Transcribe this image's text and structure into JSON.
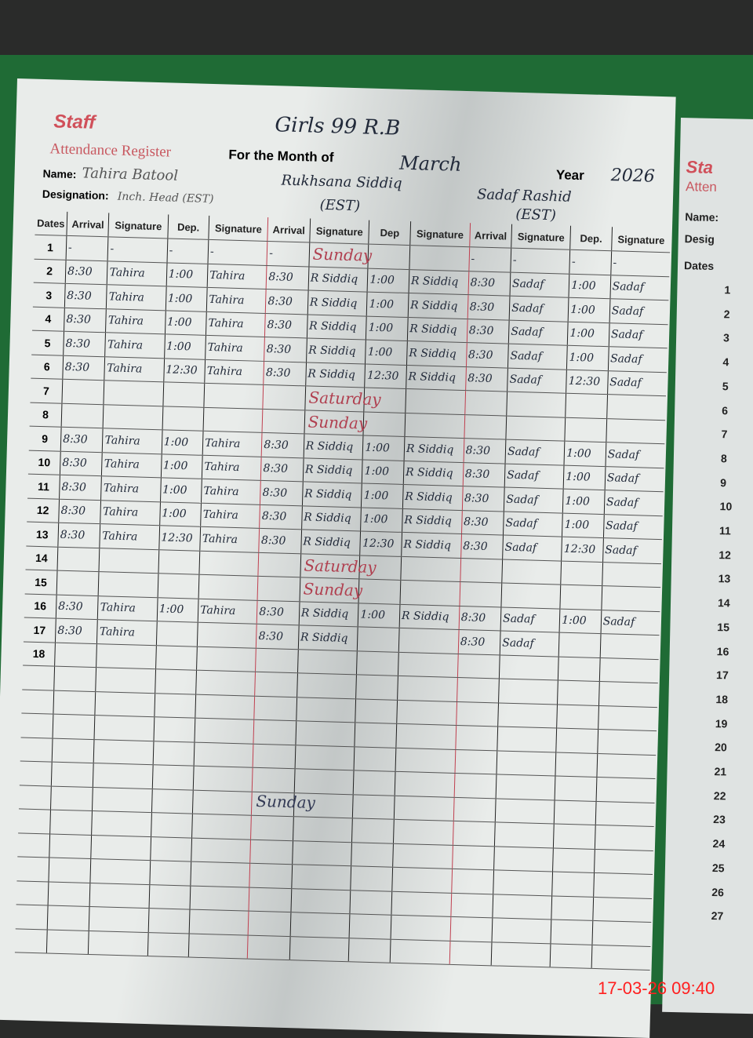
{
  "header": {
    "title": "Staff",
    "subtitle": "Attendance Register",
    "month_label": "For the Month of",
    "school": "Girls 99 R.B",
    "month": "March",
    "year_label": "Year",
    "year": "2026",
    "name_label": "Name:",
    "designation_label": "Designation:"
  },
  "staff": [
    {
      "name": "Tahira Batool",
      "designation": "Inch. Head (EST)"
    },
    {
      "name": "Rukhsana Siddiq",
      "designation": "(EST)"
    },
    {
      "name": "Sadaf Rashid",
      "designation": "(EST)"
    }
  ],
  "columns": [
    "Dates",
    "Arrival",
    "Signature",
    "Dep.",
    "Signature",
    "Arrival",
    "Signature",
    "Dep",
    "Signature",
    "Arrival",
    "Signature",
    "Dep.",
    "Signature"
  ],
  "rows": [
    [
      "1",
      "-",
      "-",
      "-",
      "-",
      "-",
      "",
      "",
      "",
      "-",
      "-",
      "-",
      "-"
    ],
    [
      "2",
      "8:30",
      "Tahira",
      "1:00",
      "Tahira",
      "8:30",
      "R Siddiq",
      "1:00",
      "R Siddiq",
      "8:30",
      "Sadaf",
      "1:00",
      "Sadaf"
    ],
    [
      "3",
      "8:30",
      "Tahira",
      "1:00",
      "Tahira",
      "8:30",
      "R Siddiq",
      "1:00",
      "R Siddiq",
      "8:30",
      "Sadaf",
      "1:00",
      "Sadaf"
    ],
    [
      "4",
      "8:30",
      "Tahira",
      "1:00",
      "Tahira",
      "8:30",
      "R Siddiq",
      "1:00",
      "R Siddiq",
      "8:30",
      "Sadaf",
      "1:00",
      "Sadaf"
    ],
    [
      "5",
      "8:30",
      "Tahira",
      "1:00",
      "Tahira",
      "8:30",
      "R Siddiq",
      "1:00",
      "R Siddiq",
      "8:30",
      "Sadaf",
      "1:00",
      "Sadaf"
    ],
    [
      "6",
      "8:30",
      "Tahira",
      "12:30",
      "Tahira",
      "8:30",
      "R Siddiq",
      "12:30",
      "R Siddiq",
      "8:30",
      "Sadaf",
      "12:30",
      "Sadaf"
    ],
    [
      "7",
      "",
      "",
      "",
      "",
      "",
      "",
      "",
      "",
      "",
      "",
      "",
      ""
    ],
    [
      "8",
      "",
      "",
      "",
      "",
      "",
      "",
      "",
      "",
      "",
      "",
      "",
      ""
    ],
    [
      "9",
      "8:30",
      "Tahira",
      "1:00",
      "Tahira",
      "8:30",
      "R Siddiq",
      "1:00",
      "R Siddiq",
      "8:30",
      "Sadaf",
      "1:00",
      "Sadaf"
    ],
    [
      "10",
      "8:30",
      "Tahira",
      "1:00",
      "Tahira",
      "8:30",
      "R Siddiq",
      "1:00",
      "R Siddiq",
      "8:30",
      "Sadaf",
      "1:00",
      "Sadaf"
    ],
    [
      "11",
      "8:30",
      "Tahira",
      "1:00",
      "Tahira",
      "8:30",
      "R Siddiq",
      "1:00",
      "R Siddiq",
      "8:30",
      "Sadaf",
      "1:00",
      "Sadaf"
    ],
    [
      "12",
      "8:30",
      "Tahira",
      "1:00",
      "Tahira",
      "8:30",
      "R Siddiq",
      "1:00",
      "R Siddiq",
      "8:30",
      "Sadaf",
      "1:00",
      "Sadaf"
    ],
    [
      "13",
      "8:30",
      "Tahira",
      "12:30",
      "Tahira",
      "8:30",
      "R Siddiq",
      "12:30",
      "R Siddiq",
      "8:30",
      "Sadaf",
      "12:30",
      "Sadaf"
    ],
    [
      "14",
      "",
      "",
      "",
      "",
      "",
      "",
      "",
      "",
      "",
      "",
      "",
      ""
    ],
    [
      "15",
      "",
      "",
      "",
      "",
      "",
      "",
      "",
      "",
      "",
      "",
      "",
      ""
    ],
    [
      "16",
      "8:30",
      "Tahira",
      "1:00",
      "Tahira",
      "8:30",
      "R Siddiq",
      "1:00",
      "R Siddiq",
      "8:30",
      "Sadaf",
      "1:00",
      "Sadaf"
    ],
    [
      "17",
      "8:30",
      "Tahira",
      "",
      "",
      "8:30",
      "R Siddiq",
      "",
      "",
      "8:30",
      "Sadaf",
      "",
      ""
    ],
    [
      "18",
      "",
      "",
      "",
      "",
      "",
      "",
      "",
      "",
      "",
      "",
      "",
      ""
    ]
  ],
  "notes": {
    "sunday1": "Sunday",
    "saturday1": "Saturday",
    "sunday2": "Sunday",
    "saturday2": "Saturday",
    "sunday3": "Sunday",
    "sunday4": "Sunday"
  },
  "right_page": {
    "title": "Sta",
    "subtitle": "Atten",
    "name_label": "Name:",
    "designation_label": "Desig",
    "dates_label": "Dates",
    "dates": [
      "1",
      "2",
      "3",
      "4",
      "5",
      "6",
      "7",
      "8",
      "9",
      "10",
      "11",
      "12",
      "13",
      "14",
      "15",
      "16",
      "17",
      "18",
      "19",
      "20",
      "21",
      "22",
      "23",
      "24",
      "25",
      "26",
      "27"
    ]
  },
  "timestamp": "17-03-26  09:40",
  "colors": {
    "cover": "#1f6b35",
    "paper": "#e9ecea",
    "print_red": "#d0505a",
    "timestamp": "#ff2020"
  }
}
